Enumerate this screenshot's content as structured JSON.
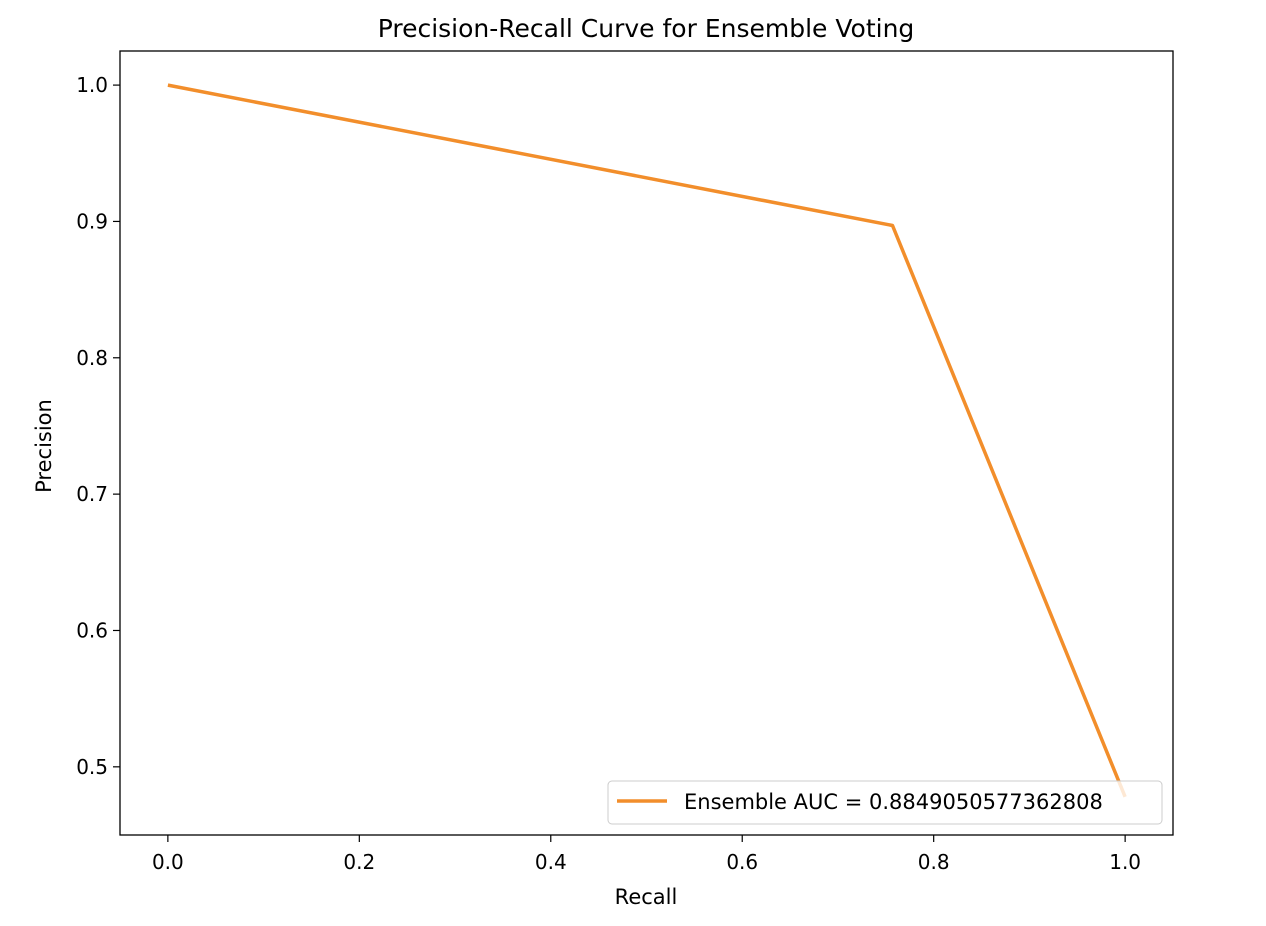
{
  "chart_data": {
    "type": "line",
    "title": "Precision-Recall Curve for Ensemble Voting",
    "xlabel": "Recall",
    "ylabel": "Precision",
    "xlim": [
      -0.05,
      1.05
    ],
    "ylim": [
      0.45,
      1.025
    ],
    "x_ticks": [
      0.0,
      0.2,
      0.4,
      0.6,
      0.8,
      1.0
    ],
    "x_tick_labels": [
      "0.0",
      "0.2",
      "0.4",
      "0.6",
      "0.8",
      "1.0"
    ],
    "y_ticks": [
      0.5,
      0.6,
      0.7,
      0.8,
      0.9,
      1.0
    ],
    "y_tick_labels": [
      "0.5",
      "0.6",
      "0.7",
      "0.8",
      "0.9",
      "1.0"
    ],
    "grid": false,
    "legend_position": "lower-right",
    "series": [
      {
        "name": "Ensemble AUC = 0.8849050577362808",
        "color": "#f28e2b",
        "x": [
          0.0,
          0.757,
          1.0
        ],
        "y": [
          1.0,
          0.897,
          0.478
        ]
      }
    ]
  }
}
